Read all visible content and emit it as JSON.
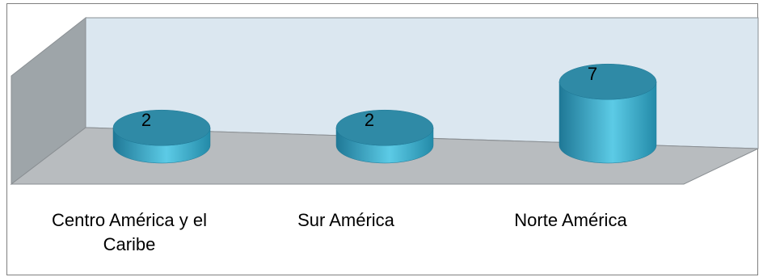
{
  "chart_data": {
    "type": "bar",
    "subtype": "3d-cylinder",
    "categories": [
      "Centro América y el Caribe",
      "Sur América",
      "Norte América"
    ],
    "values": [
      2,
      2,
      7
    ],
    "data_labels": [
      "2",
      "2",
      "7"
    ],
    "title": "",
    "xlabel": "",
    "ylabel": "",
    "ylim": [
      0,
      8
    ],
    "grid": false,
    "legend": "none"
  },
  "colors": {
    "cylinder_body": "#3aa9c9",
    "cylinder_highlight": "#62d0ea",
    "cylinder_top": "#2f8aa6",
    "back_wall": "#dbe7f0",
    "side_wall": "#9ea5a9",
    "floor": "#b8bcbf",
    "frame_border": "#7f7f7f"
  }
}
